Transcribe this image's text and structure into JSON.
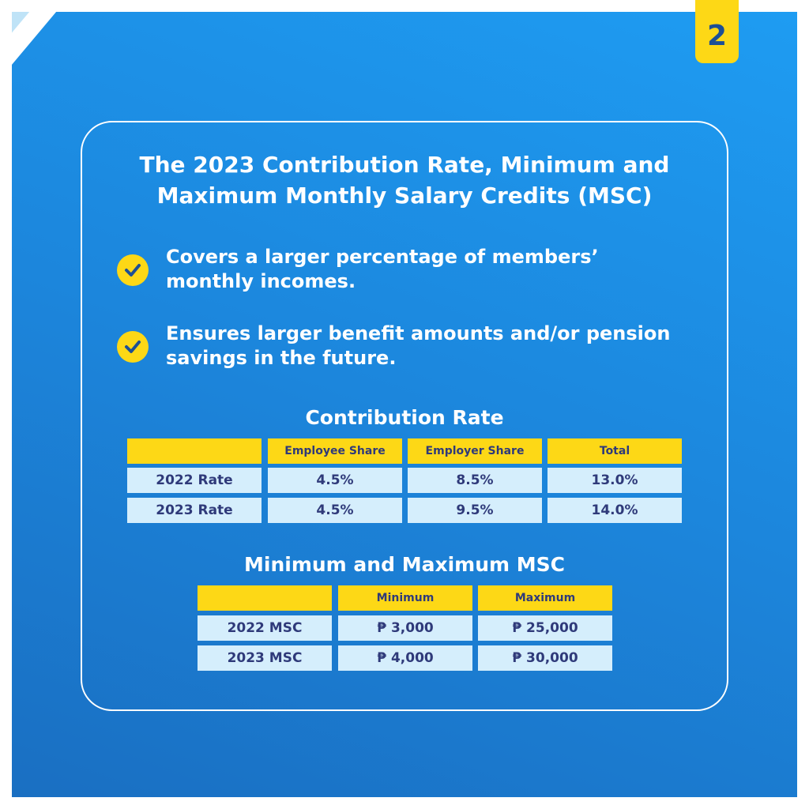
{
  "page_number": "2",
  "title_lines": [
    "The 2023 Contribution Rate, Minimum and",
    "Maximum Monthly Salary Credits (MSC)"
  ],
  "bullets": [
    {
      "icon": "check-circle-icon",
      "lines": [
        "Covers a larger percentage of members’",
        "monthly incomes."
      ]
    },
    {
      "icon": "check-circle-icon",
      "lines": [
        "Ensures larger benefit amounts and/or pension",
        "savings in the future."
      ]
    }
  ],
  "contribution_table": {
    "heading": "Contribution Rate",
    "headers": [
      "",
      "Employee Share",
      "Employer Share",
      "Total"
    ],
    "rows": [
      [
        "2022 Rate",
        "4.5%",
        "8.5%",
        "13.0%"
      ],
      [
        "2023 Rate",
        "4.5%",
        "9.5%",
        "14.0%"
      ]
    ]
  },
  "msc_table": {
    "heading": "Minimum and Maximum MSC",
    "headers": [
      "",
      "Minimum",
      "Maximum"
    ],
    "rows": [
      [
        "2022 MSC",
        "₱ 3,000",
        "₱ 25,000"
      ],
      [
        "2023 MSC",
        "₱ 4,000",
        "₱ 30,000"
      ]
    ]
  },
  "colors": {
    "background_blue": "#1c86dc",
    "accent_yellow": "#fdd816",
    "cell_light": "#d5eefc",
    "text_navy": "#2f3a7a"
  }
}
